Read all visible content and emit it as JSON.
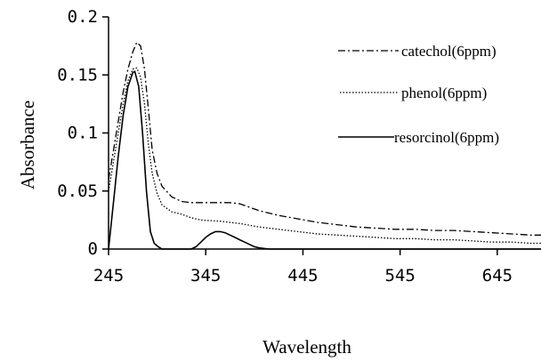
{
  "chart_data": {
    "type": "line",
    "title": "",
    "xlabel": "Wavelength",
    "ylabel": "Absorbance",
    "xlim": [
      245,
      690
    ],
    "ylim": [
      0,
      0.2
    ],
    "xticks": [
      "245",
      "345",
      "445",
      "545",
      "645"
    ],
    "yticks": [
      "0",
      "0.05",
      "0.1",
      "0.15",
      "0.2"
    ],
    "grid": false,
    "legend_position": "top-right",
    "series": [
      {
        "name": "catechol(6ppm)",
        "style": "dash-dot",
        "color": "#000000",
        "points": [
          [
            245,
            0.06
          ],
          [
            250,
            0.085
          ],
          [
            255,
            0.11
          ],
          [
            260,
            0.135
          ],
          [
            265,
            0.155
          ],
          [
            270,
            0.17
          ],
          [
            274,
            0.178
          ],
          [
            278,
            0.175
          ],
          [
            282,
            0.155
          ],
          [
            286,
            0.12
          ],
          [
            290,
            0.085
          ],
          [
            295,
            0.065
          ],
          [
            300,
            0.054
          ],
          [
            310,
            0.045
          ],
          [
            320,
            0.041
          ],
          [
            330,
            0.04
          ],
          [
            340,
            0.04
          ],
          [
            350,
            0.04
          ],
          [
            360,
            0.04
          ],
          [
            370,
            0.04
          ],
          [
            380,
            0.039
          ],
          [
            390,
            0.036
          ],
          [
            400,
            0.033
          ],
          [
            420,
            0.029
          ],
          [
            440,
            0.026
          ],
          [
            460,
            0.023
          ],
          [
            480,
            0.021
          ],
          [
            500,
            0.019
          ],
          [
            520,
            0.018
          ],
          [
            540,
            0.017
          ],
          [
            560,
            0.017
          ],
          [
            580,
            0.016
          ],
          [
            600,
            0.016
          ],
          [
            620,
            0.015
          ],
          [
            640,
            0.014
          ],
          [
            660,
            0.013
          ],
          [
            680,
            0.012
          ],
          [
            690,
            0.012
          ]
        ]
      },
      {
        "name": "phenol(6ppm)",
        "style": "dotted",
        "color": "#000000",
        "points": [
          [
            245,
            0.05
          ],
          [
            250,
            0.075
          ],
          [
            255,
            0.1
          ],
          [
            260,
            0.125
          ],
          [
            265,
            0.145
          ],
          [
            270,
            0.155
          ],
          [
            274,
            0.156
          ],
          [
            278,
            0.148
          ],
          [
            282,
            0.125
          ],
          [
            286,
            0.09
          ],
          [
            290,
            0.065
          ],
          [
            295,
            0.048
          ],
          [
            300,
            0.038
          ],
          [
            310,
            0.032
          ],
          [
            320,
            0.03
          ],
          [
            330,
            0.027
          ],
          [
            340,
            0.025
          ],
          [
            360,
            0.024
          ],
          [
            380,
            0.022
          ],
          [
            400,
            0.019
          ],
          [
            420,
            0.017
          ],
          [
            440,
            0.015
          ],
          [
            460,
            0.013
          ],
          [
            480,
            0.012
          ],
          [
            500,
            0.011
          ],
          [
            520,
            0.01
          ],
          [
            540,
            0.009
          ],
          [
            560,
            0.009
          ],
          [
            580,
            0.008
          ],
          [
            600,
            0.008
          ],
          [
            620,
            0.007
          ],
          [
            640,
            0.006
          ],
          [
            660,
            0.006
          ],
          [
            680,
            0.005
          ],
          [
            690,
            0.005
          ]
        ]
      },
      {
        "name": "resorcinol(6ppm)",
        "style": "solid",
        "color": "#000000",
        "points": [
          [
            245,
            0.0
          ],
          [
            250,
            0.04
          ],
          [
            255,
            0.08
          ],
          [
            260,
            0.115
          ],
          [
            265,
            0.14
          ],
          [
            270,
            0.152
          ],
          [
            272,
            0.153
          ],
          [
            276,
            0.14
          ],
          [
            280,
            0.1
          ],
          [
            284,
            0.05
          ],
          [
            288,
            0.015
          ],
          [
            292,
            0.005
          ],
          [
            296,
            0.002
          ],
          [
            300,
            0.0
          ],
          [
            330,
            0.0
          ],
          [
            335,
            0.002
          ],
          [
            340,
            0.006
          ],
          [
            345,
            0.01
          ],
          [
            350,
            0.013
          ],
          [
            355,
            0.015
          ],
          [
            360,
            0.015
          ],
          [
            365,
            0.014
          ],
          [
            370,
            0.012
          ],
          [
            375,
            0.01
          ],
          [
            380,
            0.008
          ],
          [
            385,
            0.006
          ],
          [
            390,
            0.004
          ],
          [
            395,
            0.002
          ],
          [
            400,
            0.001
          ],
          [
            410,
            0.0
          ],
          [
            690,
            0.0
          ]
        ]
      }
    ]
  }
}
